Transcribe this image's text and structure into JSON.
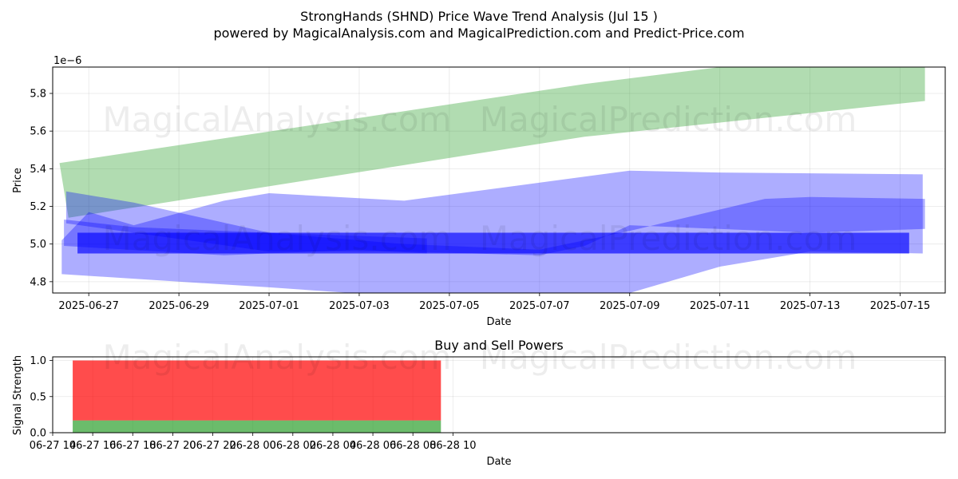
{
  "header": {
    "title": "StrongHands (SHND) Price Wave Trend Analysis (Jul 15 )",
    "subtitle": "powered by MagicalAnalysis.com and MagicalPrediction.com and Predict-Price.com"
  },
  "watermarks": [
    "MagicalAnalysis.com",
    "MagicalPrediction.com"
  ],
  "colors": {
    "green_band": "#2ca02c",
    "blue_band": "#0000ff",
    "sell": "#ff0000",
    "buy": "#2ca02c"
  },
  "chart_data": [
    {
      "type": "area",
      "title": "",
      "xlabel": "Date",
      "ylabel": "Price",
      "y_scale_note": "1e−6",
      "x_domain_days": [
        -0.8,
        19.0
      ],
      "ylim": [
        4.74,
        5.94
      ],
      "x_ticks": [
        {
          "day": 0,
          "label": "2025-06-27"
        },
        {
          "day": 2,
          "label": "2025-06-29"
        },
        {
          "day": 4,
          "label": "2025-07-01"
        },
        {
          "day": 6,
          "label": "2025-07-03"
        },
        {
          "day": 8,
          "label": "2025-07-05"
        },
        {
          "day": 10,
          "label": "2025-07-07"
        },
        {
          "day": 12,
          "label": "2025-07-09"
        },
        {
          "day": 14,
          "label": "2025-07-11"
        },
        {
          "day": 16,
          "label": "2025-07-13"
        },
        {
          "day": 18,
          "label": "2025-07-15"
        }
      ],
      "y_ticks": [
        {
          "value": 4.8,
          "label": "4.8"
        },
        {
          "value": 5.0,
          "label": "5.0"
        },
        {
          "value": 5.2,
          "label": "5.2"
        },
        {
          "value": 5.4,
          "label": "5.4"
        },
        {
          "value": 5.6,
          "label": "5.6"
        },
        {
          "value": 5.8,
          "label": "5.8"
        }
      ],
      "series": [
        {
          "name": "green-wave-band",
          "color": "#2ca02c",
          "opacity": 0.37,
          "upper": [
            [
              -0.65,
              5.43
            ],
            [
              11.0,
              5.85
            ],
            [
              14.0,
              5.94
            ],
            [
              18.55,
              5.94
            ]
          ],
          "lower": [
            [
              18.55,
              5.76
            ],
            [
              11.0,
              5.57
            ],
            [
              -0.45,
              5.14
            ]
          ]
        },
        {
          "name": "blue-wave-band-wide",
          "color": "#0000ff",
          "opacity": 0.32,
          "upper": [
            [
              -0.6,
              5.02
            ],
            [
              0.0,
              5.17
            ],
            [
              1.0,
              5.1
            ],
            [
              3.0,
              5.23
            ],
            [
              4.0,
              5.27
            ],
            [
              7.0,
              5.23
            ],
            [
              12.0,
              5.39
            ],
            [
              14.0,
              5.38
            ],
            [
              18.5,
              5.37
            ]
          ],
          "lower": [
            [
              18.5,
              4.95
            ],
            [
              16.0,
              4.96
            ],
            [
              14.0,
              4.88
            ],
            [
              12.0,
              4.74
            ],
            [
              7.0,
              4.72
            ],
            [
              4.0,
              4.77
            ],
            [
              -0.6,
              4.84
            ]
          ]
        },
        {
          "name": "blue-wave-band-mid",
          "color": "#0000ff",
          "opacity": 0.32,
          "upper": [
            [
              -0.5,
              5.28
            ],
            [
              1.0,
              5.22
            ],
            [
              4.0,
              5.06
            ],
            [
              7.0,
              5.0
            ],
            [
              10.0,
              4.97
            ],
            [
              12.0,
              5.07
            ],
            [
              15.0,
              5.24
            ],
            [
              16.0,
              5.25
            ],
            [
              18.55,
              5.24
            ]
          ],
          "lower": [
            [
              18.55,
              5.08
            ],
            [
              16.0,
              5.06
            ],
            [
              12.0,
              5.1
            ],
            [
              11.0,
              4.99
            ],
            [
              10.0,
              4.94
            ],
            [
              7.0,
              4.96
            ],
            [
              4.0,
              4.96
            ],
            [
              -0.5,
              5.11
            ]
          ]
        },
        {
          "name": "blue-wave-band-left",
          "color": "#0000ff",
          "opacity": 0.32,
          "upper": [
            [
              -0.55,
              5.13
            ],
            [
              1.0,
              5.09
            ],
            [
              4.0,
              5.06
            ],
            [
              7.5,
              5.03
            ]
          ],
          "lower": [
            [
              7.5,
              4.95
            ],
            [
              6.0,
              4.97
            ],
            [
              3.0,
              4.94
            ],
            [
              -0.55,
              4.99
            ]
          ]
        },
        {
          "name": "blue-core-band",
          "color": "#0000ff",
          "opacity": 0.65,
          "upper": [
            [
              -0.25,
              5.06
            ],
            [
              18.2,
              5.06
            ]
          ],
          "lower": [
            [
              18.2,
              4.95
            ],
            [
              -0.25,
              4.95
            ]
          ]
        }
      ]
    },
    {
      "type": "bar",
      "title": "Buy and Sell Powers",
      "xlabel": "Date",
      "ylabel": "Signal Strength",
      "x_domain_hours": [
        14.0,
        58.6
      ],
      "ylim": [
        0,
        1.05
      ],
      "x_ticks": [
        {
          "hour": 14,
          "label": "06-27 14"
        },
        {
          "hour": 16,
          "label": "06-27 16"
        },
        {
          "hour": 18,
          "label": "06-27 18"
        },
        {
          "hour": 20,
          "label": "06-27 20"
        },
        {
          "hour": 22,
          "label": "06-27 22"
        },
        {
          "hour": 24,
          "label": "06-28 00"
        },
        {
          "hour": 26,
          "label": "06-28 02"
        },
        {
          "hour": 28,
          "label": "06-28 04"
        },
        {
          "hour": 30,
          "label": "06-28 06"
        },
        {
          "hour": 32,
          "label": "06-28 08"
        },
        {
          "hour": 34,
          "label": "06-28 10"
        }
      ],
      "y_ticks": [
        {
          "value": 0.0,
          "label": "0.0"
        },
        {
          "value": 0.5,
          "label": "0.5"
        },
        {
          "value": 1.0,
          "label": "1.0"
        }
      ],
      "bar_span_hours": [
        15.0,
        33.4
      ],
      "series": [
        {
          "name": "Buy Power",
          "color": "#2ca02c",
          "value": 0.17
        },
        {
          "name": "Sell Power",
          "color": "#ff0000",
          "value": 0.83
        }
      ]
    }
  ]
}
